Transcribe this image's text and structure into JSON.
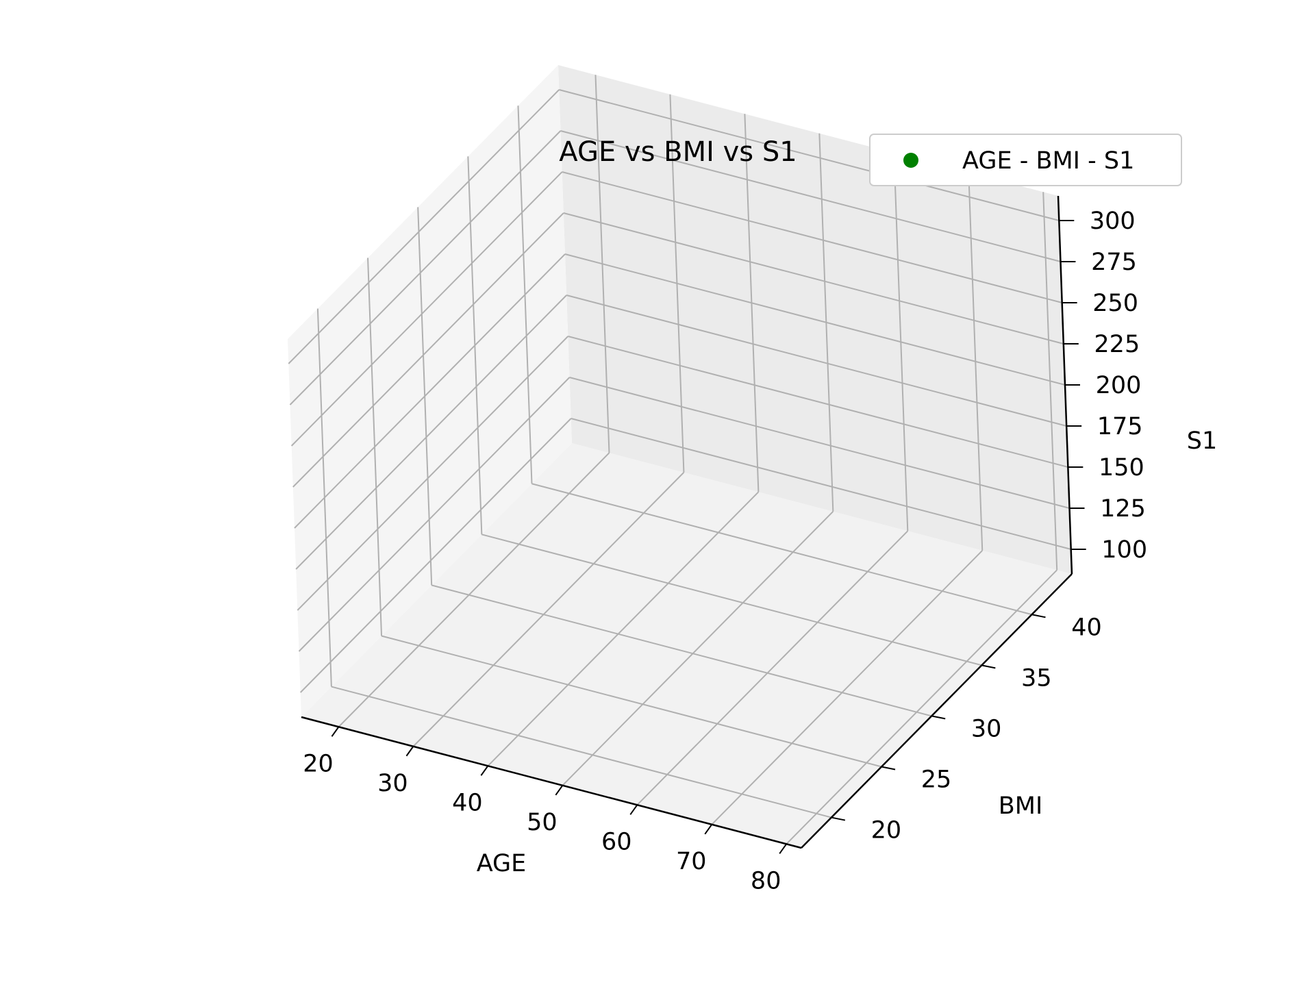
{
  "chart_data": {
    "type": "scatter",
    "title": "AGE vs BMI vs S1",
    "xlabel": "AGE",
    "ylabel": "BMI",
    "zlabel": "S1",
    "xlim": [
      15,
      82
    ],
    "ylim": [
      17,
      44
    ],
    "zlim": [
      85,
      315
    ],
    "xticks": [
      "20",
      "30",
      "40",
      "50",
      "60",
      "70",
      "80"
    ],
    "yticks": [
      "20",
      "25",
      "30",
      "35",
      "40"
    ],
    "zticks": [
      "100",
      "125",
      "150",
      "175",
      "200",
      "225",
      "250",
      "275",
      "300"
    ],
    "legend_position": "top-right",
    "grid": true,
    "series": [
      {
        "name": "AGE - BMI - S1",
        "color": "#008000",
        "x": [],
        "y": [],
        "z": []
      }
    ]
  }
}
